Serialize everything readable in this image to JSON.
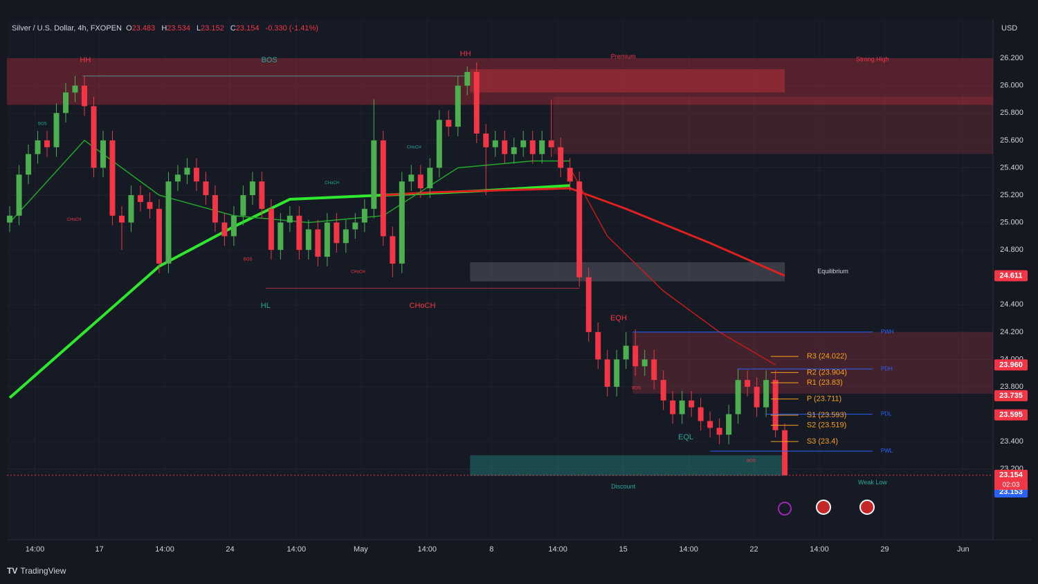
{
  "chart_data": {
    "type": "candlestick",
    "header": {
      "symbol": "Silver / U.S. Dollar, 4h, FXOPEN",
      "open_label": "O",
      "open": 23.483,
      "high_label": "H",
      "high": 23.534,
      "low_label": "L",
      "low": 23.152,
      "close_label": "C",
      "close": 23.154,
      "change": "-0.330 (-1.41%)"
    },
    "currency": "USD",
    "brand": "TradingView",
    "candles": [
      [
        25.0,
        25.12,
        24.93,
        25.05
      ],
      [
        25.05,
        25.42,
        24.98,
        25.35
      ],
      [
        25.35,
        25.57,
        25.28,
        25.5
      ],
      [
        25.5,
        25.67,
        25.43,
        25.6
      ],
      [
        25.6,
        25.67,
        25.48,
        25.55
      ],
      [
        25.55,
        25.87,
        25.48,
        25.8
      ],
      [
        25.8,
        26.02,
        25.73,
        25.95
      ],
      [
        25.95,
        26.07,
        25.88,
        26.0
      ],
      [
        26.0,
        26.07,
        25.78,
        25.85
      ],
      [
        25.85,
        25.92,
        25.33,
        25.4
      ],
      [
        25.4,
        25.67,
        25.33,
        25.6
      ],
      [
        25.6,
        25.67,
        24.98,
        25.05
      ],
      [
        25.05,
        25.12,
        24.8,
        25.0
      ],
      [
        25.0,
        25.27,
        24.93,
        25.2
      ],
      [
        25.2,
        25.27,
        25.08,
        25.15
      ],
      [
        25.15,
        25.22,
        25.03,
        25.1
      ],
      [
        25.1,
        25.17,
        24.63,
        24.7
      ],
      [
        24.7,
        25.37,
        24.63,
        25.3
      ],
      [
        25.3,
        25.42,
        25.23,
        25.35
      ],
      [
        25.35,
        25.47,
        25.28,
        25.4
      ],
      [
        25.4,
        25.47,
        25.23,
        25.3
      ],
      [
        25.3,
        25.37,
        25.13,
        25.2
      ],
      [
        25.2,
        25.27,
        24.93,
        25.0
      ],
      [
        25.0,
        25.07,
        24.83,
        24.9
      ],
      [
        24.9,
        25.12,
        24.83,
        25.05
      ],
      [
        25.05,
        25.27,
        24.98,
        25.2
      ],
      [
        25.2,
        25.37,
        25.13,
        25.3
      ],
      [
        25.3,
        25.37,
        25.03,
        25.1
      ],
      [
        25.1,
        25.17,
        24.73,
        24.8
      ],
      [
        24.8,
        25.07,
        24.73,
        25.0
      ],
      [
        25.0,
        25.12,
        24.93,
        25.05
      ],
      [
        25.05,
        25.12,
        24.73,
        24.8
      ],
      [
        24.8,
        25.02,
        24.73,
        24.95
      ],
      [
        24.95,
        25.02,
        24.68,
        24.75
      ],
      [
        24.75,
        25.07,
        24.68,
        25.0
      ],
      [
        25.0,
        25.07,
        24.78,
        24.85
      ],
      [
        24.85,
        25.02,
        24.78,
        24.95
      ],
      [
        24.95,
        25.07,
        24.88,
        25.0
      ],
      [
        25.0,
        25.17,
        24.93,
        25.1
      ],
      [
        25.1,
        25.9,
        25.03,
        25.6
      ],
      [
        25.6,
        25.67,
        24.83,
        24.9
      ],
      [
        24.9,
        24.97,
        24.6,
        24.7
      ],
      [
        24.7,
        25.37,
        24.63,
        25.3
      ],
      [
        25.3,
        25.42,
        25.23,
        25.35
      ],
      [
        25.35,
        25.42,
        25.18,
        25.25
      ],
      [
        25.25,
        25.47,
        25.18,
        25.4
      ],
      [
        25.4,
        25.82,
        25.33,
        25.75
      ],
      [
        25.75,
        25.82,
        25.63,
        25.7
      ],
      [
        25.7,
        26.07,
        25.63,
        26.0
      ],
      [
        26.0,
        26.14,
        25.93,
        26.1
      ],
      [
        26.1,
        26.17,
        25.58,
        25.65
      ],
      [
        25.65,
        25.72,
        25.2,
        25.55
      ],
      [
        25.55,
        25.67,
        25.48,
        25.6
      ],
      [
        25.6,
        25.67,
        25.43,
        25.5
      ],
      [
        25.5,
        25.62,
        25.43,
        25.55
      ],
      [
        25.55,
        25.67,
        25.48,
        25.6
      ],
      [
        25.6,
        25.67,
        25.43,
        25.5
      ],
      [
        25.5,
        25.67,
        25.43,
        25.6
      ],
      [
        25.6,
        25.9,
        25.48,
        25.55
      ],
      [
        25.55,
        25.62,
        25.33,
        25.4
      ],
      [
        25.4,
        25.47,
        25.23,
        25.3
      ],
      [
        25.3,
        25.37,
        24.53,
        24.6
      ],
      [
        24.6,
        24.67,
        24.13,
        24.2
      ],
      [
        24.2,
        24.27,
        23.93,
        24.0
      ],
      [
        24.0,
        24.07,
        23.73,
        23.8
      ],
      [
        23.8,
        24.07,
        23.73,
        24.0
      ],
      [
        24.0,
        24.2,
        23.93,
        24.1
      ],
      [
        24.1,
        24.22,
        23.88,
        23.95
      ],
      [
        23.95,
        24.07,
        23.88,
        24.0
      ],
      [
        24.0,
        24.07,
        23.78,
        23.85
      ],
      [
        23.85,
        23.92,
        23.63,
        23.7
      ],
      [
        23.7,
        23.77,
        23.53,
        23.6
      ],
      [
        23.6,
        23.77,
        23.53,
        23.7
      ],
      [
        23.7,
        23.77,
        23.58,
        23.65
      ],
      [
        23.65,
        23.72,
        23.48,
        23.55
      ],
      [
        23.55,
        23.62,
        23.43,
        23.5
      ],
      [
        23.5,
        23.57,
        23.38,
        23.45
      ],
      [
        23.45,
        23.67,
        23.38,
        23.6
      ],
      [
        23.6,
        23.93,
        23.53,
        23.85
      ],
      [
        23.85,
        23.92,
        23.73,
        23.8
      ],
      [
        23.8,
        23.87,
        23.58,
        23.65
      ],
      [
        23.65,
        23.92,
        23.58,
        23.85
      ],
      [
        23.85,
        23.92,
        23.43,
        23.483
      ],
      [
        23.483,
        23.534,
        23.152,
        23.154
      ]
    ],
    "up_color": "#4caf50",
    "down_color": "#f23645",
    "lines": [
      {
        "color": "#2ee82e",
        "width": 4,
        "x": [
          0,
          16,
          24,
          30,
          40,
          50,
          60
        ],
        "values": [
          23.72,
          24.68,
          24.97,
          25.17,
          25.2,
          25.23,
          25.27
        ]
      },
      {
        "color": "#e01f1f",
        "width": 3,
        "x": [
          40,
          45,
          60,
          66,
          75,
          83
        ],
        "values": [
          25.2,
          25.22,
          25.25,
          25.1,
          24.85,
          24.611
        ]
      },
      {
        "color": "#1fa82a",
        "width": 1.5,
        "x": [
          0,
          8,
          16,
          24,
          32,
          40,
          48,
          56,
          60
        ],
        "values": [
          25.0,
          25.6,
          25.2,
          25.05,
          25.0,
          25.05,
          25.4,
          25.45,
          25.45
        ]
      },
      {
        "color": "#c41a1a",
        "width": 1.5,
        "x": [
          60,
          64,
          70,
          76,
          82
        ],
        "values": [
          25.4,
          24.9,
          24.5,
          24.2,
          23.96
        ]
      }
    ],
    "zones": [
      {
        "top": 26.2,
        "bottom": 25.86,
        "start": -0.3,
        "end": 105.3,
        "color": "rgba(200,50,60,0.35)"
      },
      {
        "top": 26.12,
        "bottom": 25.95,
        "start": 49.3,
        "end": 83,
        "color": "rgba(200,50,60,0.45)"
      },
      {
        "top": 25.92,
        "bottom": 25.5,
        "start": 58.2,
        "end": 105.3,
        "color": "rgba(200,60,70,0.22)"
      },
      {
        "top": 24.71,
        "bottom": 24.57,
        "start": 49.3,
        "end": 83,
        "color": "rgba(120,123,134,0.35)"
      },
      {
        "top": 24.2,
        "bottom": 23.75,
        "start": 66.7,
        "end": 105.3,
        "color": "rgba(200,60,70,0.25)"
      },
      {
        "top": 23.3,
        "bottom": 23.15,
        "start": 49.3,
        "end": 83,
        "color": "rgba(38,166,154,0.35)"
      }
    ],
    "levels": [
      {
        "label": "PWH",
        "value": 24.2,
        "start": 66.7,
        "end": 92.4
      },
      {
        "label": "PDH",
        "value": 23.93,
        "start": 78,
        "end": 92.4
      },
      {
        "label": "PDL",
        "value": 23.6,
        "start": 81,
        "end": 92.4
      },
      {
        "label": "PWL",
        "value": 23.33,
        "start": 75,
        "end": 92.4
      }
    ],
    "level_color": "#2962ff",
    "pivots": [
      {
        "label": "R3 (24.022)",
        "value": 24.022
      },
      {
        "label": "R2 (23.904)",
        "value": 23.904
      },
      {
        "label": "R1 (23.83)",
        "value": 23.83
      },
      {
        "label": "P (23.711)",
        "value": 23.711
      },
      {
        "label": "S1 (23.593)",
        "value": 23.593
      },
      {
        "label": "S2 (23.519)",
        "value": 23.519
      },
      {
        "label": "S3 (23.4)",
        "value": 23.4
      }
    ],
    "pivot_color": "#f7a21b",
    "pivot_start": 81.5,
    "annotations": [
      {
        "text": "HH",
        "x": 8.1,
        "y": 26.185,
        "color": "#f23645"
      },
      {
        "text": "BOS",
        "x": 27.8,
        "y": 26.185,
        "color": "#26a69a"
      },
      {
        "text": "HH",
        "x": 48.8,
        "y": 26.23,
        "color": "#f23645"
      },
      {
        "text": "Premium",
        "x": 65.7,
        "y": 26.21,
        "color": "#f23645"
      },
      {
        "text": "Strong High",
        "x": 92.4,
        "y": 26.19,
        "color": "#f23645"
      },
      {
        "text": "Equilibrium",
        "x": 86.5,
        "y": 24.64,
        "color": "#d1d4dc"
      },
      {
        "text": "HL",
        "x": 27.4,
        "y": 24.39,
        "color": "#26a69a"
      },
      {
        "text": "CHoCH",
        "x": 44.2,
        "y": 24.39,
        "color": "#f23645"
      },
      {
        "text": "EQH",
        "x": 65.2,
        "y": 24.3,
        "color": "#f23645"
      },
      {
        "text": "EQL",
        "x": 72.4,
        "y": 23.43,
        "color": "#26a69a"
      },
      {
        "text": "Discount",
        "x": 65.7,
        "y": 23.07,
        "color": "#26a69a"
      },
      {
        "text": "Weak Low",
        "x": 92.4,
        "y": 23.1,
        "color": "#26a69a"
      },
      {
        "text": "BOS",
        "x": 3.5,
        "y": 25.72,
        "color": "#26a69a"
      },
      {
        "text": "CHoCH",
        "x": 6.9,
        "y": 25.02,
        "color": "#f23645"
      },
      {
        "text": "CHoCH",
        "x": 43.3,
        "y": 25.55,
        "color": "#26a69a"
      },
      {
        "text": "CHoCH",
        "x": 34.5,
        "y": 25.29,
        "color": "#26a69a"
      },
      {
        "text": "CHoCH",
        "x": 37.3,
        "y": 24.64,
        "color": "#f23645"
      },
      {
        "text": "BOS",
        "x": 25.5,
        "y": 24.73,
        "color": "#f23645"
      },
      {
        "text": "BOS",
        "x": 67.1,
        "y": 23.79,
        "color": "#f23645"
      },
      {
        "text": "BOS",
        "x": 79.4,
        "y": 23.26,
        "color": "#f23645"
      }
    ],
    "struct_lines": [
      {
        "value": 26.07,
        "start": 7.8,
        "end": 48.8,
        "color": "#5d8a8a"
      },
      {
        "value": 24.52,
        "start": 27.4,
        "end": 61,
        "color": "#b03040"
      }
    ],
    "badges": [
      {
        "value": 24.611,
        "label": "24.611",
        "color": "#f23645"
      },
      {
        "value": 23.96,
        "label": "23.960",
        "color": "#f23645"
      },
      {
        "value": 23.735,
        "label": "23.735",
        "color": "#f23645"
      },
      {
        "value": 23.595,
        "label": "23.595",
        "color": "#f23645"
      },
      {
        "value": 23.154,
        "label": "23.154",
        "color": "#f23645"
      },
      {
        "value": 23.153,
        "label": "23.153",
        "color": "#2962ff"
      }
    ],
    "countdown": "02:03",
    "ylim": [
      22.683,
      26.484
    ],
    "yticks": [
      {
        "value": 26.2,
        "label": "26.200"
      },
      {
        "value": 26.0,
        "label": "26.000"
      },
      {
        "value": 25.8,
        "label": "25.800"
      },
      {
        "value": 25.6,
        "label": "25.600"
      },
      {
        "value": 25.4,
        "label": "25.400"
      },
      {
        "value": 25.2,
        "label": "25.200"
      },
      {
        "value": 25.0,
        "label": "25.000"
      },
      {
        "value": 24.8,
        "label": "24.800"
      },
      {
        "value": 24.4,
        "label": "24.400"
      },
      {
        "value": 24.2,
        "label": "24.200"
      },
      {
        "value": 24.0,
        "label": "24.000"
      },
      {
        "value": 23.8,
        "label": "23.800"
      },
      {
        "value": 23.4,
        "label": "23.400"
      },
      {
        "value": 23.2,
        "label": "23.200"
      }
    ],
    "xlim": [
      -0.3,
      105.3
    ],
    "xticks": [
      {
        "value": 2.7,
        "label": "14:00"
      },
      {
        "value": 9.6,
        "label": "17"
      },
      {
        "value": 16.6,
        "label": "14:00"
      },
      {
        "value": 23.6,
        "label": "24"
      },
      {
        "value": 30.7,
        "label": "14:00"
      },
      {
        "value": 37.6,
        "label": "May"
      },
      {
        "value": 44.7,
        "label": "14:00"
      },
      {
        "value": 51.6,
        "label": "8"
      },
      {
        "value": 58.7,
        "label": "14:00"
      },
      {
        "value": 65.7,
        "label": "15"
      },
      {
        "value": 72.7,
        "label": "14:00"
      },
      {
        "value": 79.7,
        "label": "22"
      },
      {
        "value": 86.7,
        "label": "14:00"
      },
      {
        "value": 93.7,
        "label": "29"
      },
      {
        "value": 102.1,
        "label": "Jun"
      }
    ],
    "grid": true
  }
}
